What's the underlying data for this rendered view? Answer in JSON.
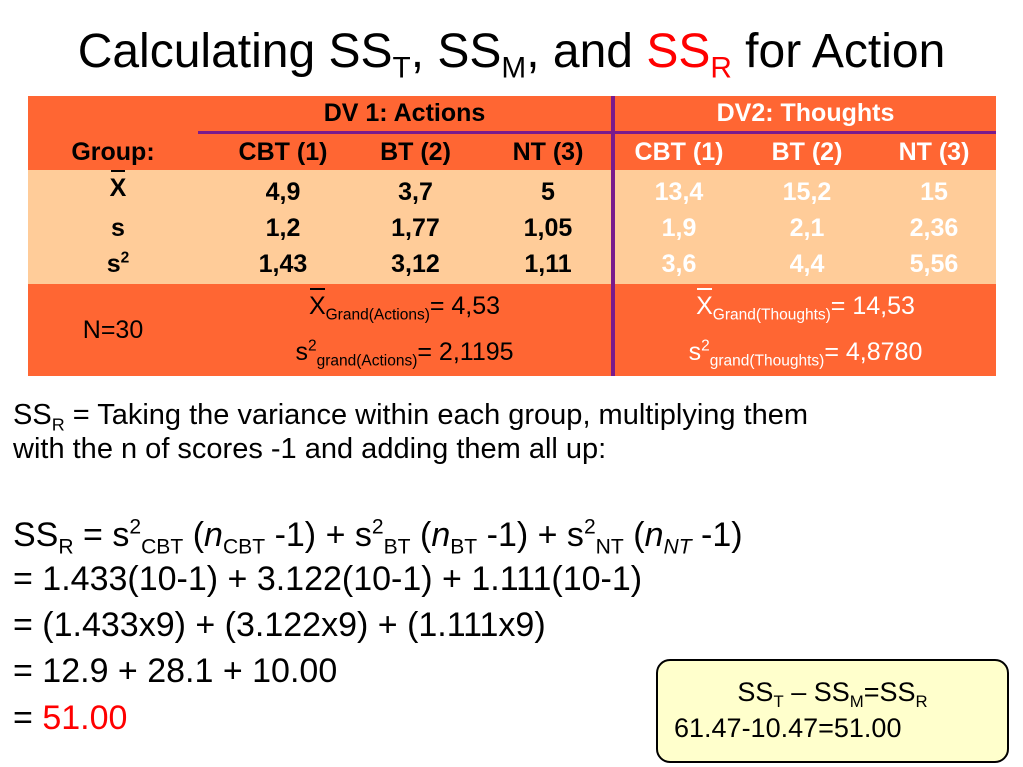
{
  "title": {
    "prefix": "Calculating SS",
    "sub_t": "T",
    "sep1": ", SS",
    "sub_m": "M",
    "sep2": ", and ",
    "ssr": "SS",
    "sub_r": "R",
    "suffix": " for Action"
  },
  "table": {
    "dv1_header": "DV 1: Actions",
    "dv2_header": "DV2: Thoughts",
    "group_label": "Group:",
    "groups": [
      "CBT (1)",
      "BT (2)",
      "NT (3)",
      "CBT (1)",
      "BT (2)",
      "NT (3)"
    ],
    "rows": [
      {
        "label": "X",
        "values": [
          "4,9",
          "3,7",
          "5",
          "13,4",
          "15,2",
          "15"
        ]
      },
      {
        "label": "s",
        "values": [
          "1,2",
          "1,77",
          "1,05",
          "1,9",
          "2,1",
          "2,36"
        ]
      },
      {
        "label": "s",
        "label_sup": "2",
        "values": [
          "1,43",
          "3,12",
          "1,11",
          "3,6",
          "4,4",
          "5,56"
        ]
      }
    ],
    "n_label": "N=30",
    "grand": {
      "actions_mean_sym": "X",
      "actions_mean_sub": "Grand(Actions)",
      "actions_mean_val": "= 4,53",
      "actions_var_sym": "s",
      "actions_var_sup": "2",
      "actions_var_sub": "grand(Actions)",
      "actions_var_val": "= 2,1195",
      "thoughts_mean_sym": "X",
      "thoughts_mean_sub": "Grand(Thoughts)",
      "thoughts_mean_val": "= 14,53",
      "thoughts_var_sym": "s",
      "thoughts_var_sup": "2",
      "thoughts_var_sub": "grand(Thoughts)",
      "thoughts_var_val": "= 4,8780"
    }
  },
  "definition": {
    "ss": "SS",
    "sub": "R",
    "line1": " = Taking the variance within each group, multiplying them",
    "line2": "with the n of scores -1 and adding them all up:"
  },
  "equations": {
    "formula": {
      "ss": "SS",
      "ss_sub": "R",
      "eq": " = s",
      "sup1": "2",
      "sub1": "CBT",
      "open1": " (",
      "n1": "n",
      "nsub1": "CBT",
      "close1": " -1) +  s",
      "sup2": "2",
      "sub2": "BT",
      "open2": " (",
      "n2": "n",
      "nsub2": "BT",
      "close2": " -1) +  s",
      "sup3": "2",
      "sub3": "NT",
      "open3": " (",
      "n3": "n",
      "nsub3": "NT",
      "close3": " -1)"
    },
    "line2": "= 1.433(10-1) + 3.122(10-1) + 1.111(10-1)",
    "line3": "= (1.433x9) + (3.122x9) + (1.111x9)",
    "line4": "= 12.9 + 28.1 + 10.00",
    "line5_prefix": "= ",
    "line5_result": "51.00"
  },
  "box": {
    "ss1": "SS",
    "sub_t": "T",
    "mid": " – SS",
    "sub_m": "M",
    "eq": "=SS",
    "sub_r": "R",
    "line2": "61.47-10.47=51.00"
  }
}
